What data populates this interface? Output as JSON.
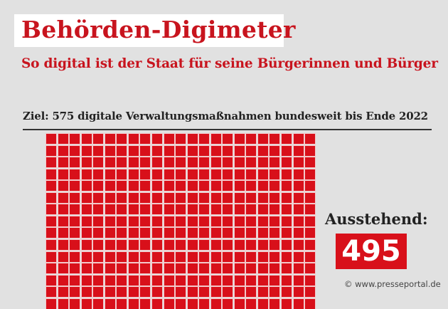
{
  "title": "Behörden-Digimeter",
  "subtitle": "So digital ist der Staat für seine Bürgerinnen und Bürger",
  "goal": "Ziel: 575 digitale Verwaltungsmaßnahmen bundesweit bis Ende 2022",
  "grid": {
    "total": 575,
    "columns": 23,
    "color": "#d8101a"
  },
  "outstanding": {
    "label": "Ausstehend:",
    "value": "495"
  },
  "credit": "© www.presseportal.de",
  "colors": {
    "accent": "#c8141e",
    "background": "#e1e1e1"
  }
}
